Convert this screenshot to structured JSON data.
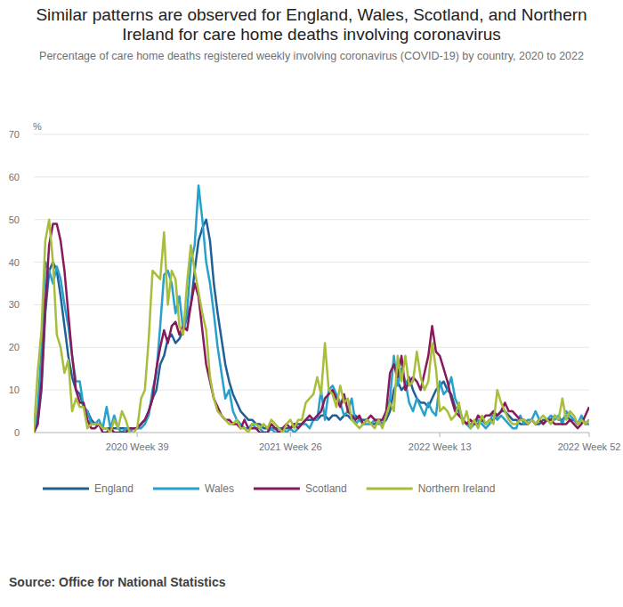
{
  "chart_data": {
    "type": "line",
    "title": "Similar patterns are observed for England, Wales, Scotland, and Northern Ireland for care home deaths involving coronavirus",
    "subtitle": "Percentage of care home deaths registered weekly involving coronavirus (COVID-19) by country, 2020 to 2022",
    "y_label": "%",
    "source": "Source: Office for National Statistics",
    "categories": [
      null,
      null,
      null,
      null,
      null,
      null,
      null,
      null,
      null,
      null,
      null,
      null,
      null,
      null,
      null,
      null,
      null,
      null,
      null,
      null,
      null,
      null,
      null,
      null,
      null,
      null,
      null,
      "2020 Week 39",
      null,
      null,
      null,
      null,
      null,
      null,
      null,
      null,
      null,
      null,
      null,
      null,
      null,
      null,
      null,
      null,
      null,
      null,
      null,
      null,
      null,
      null,
      null,
      null,
      null,
      null,
      null,
      null,
      null,
      null,
      null,
      null,
      null,
      null,
      null,
      null,
      null,
      null,
      null,
      "2021 Week 26",
      null,
      null,
      null,
      null,
      null,
      null,
      null,
      null,
      null,
      null,
      null,
      null,
      null,
      null,
      null,
      null,
      null,
      null,
      null,
      null,
      null,
      null,
      null,
      null,
      null,
      null,
      null,
      null,
      null,
      null,
      null,
      null,
      null,
      null,
      null,
      null,
      null,
      null,
      "2022 Week 13",
      null,
      null,
      null,
      null,
      null,
      null,
      null,
      null,
      null,
      null,
      null,
      null,
      null,
      null,
      null,
      null,
      null,
      null,
      null,
      null,
      null,
      null,
      null,
      null,
      null,
      null,
      null,
      null,
      null,
      null,
      null,
      null,
      null,
      null,
      null,
      null,
      null,
      null,
      "2022 Week 52"
    ],
    "series": [
      {
        "name": "England",
        "color": "#206095",
        "values": [
          0,
          2,
          10,
          28,
          38,
          40,
          38,
          32,
          25,
          18,
          13,
          10,
          9,
          6,
          5,
          3,
          2,
          2,
          1,
          1,
          1,
          1,
          1,
          1,
          1,
          1,
          1,
          1,
          2,
          3,
          5,
          8,
          10,
          16,
          18,
          22,
          23,
          21,
          22,
          24,
          27,
          30,
          38,
          45,
          48,
          50,
          45,
          35,
          28,
          22,
          16,
          12,
          9,
          7,
          5,
          4,
          3,
          3,
          2,
          2,
          1,
          1,
          1,
          1,
          1,
          1,
          1,
          1,
          2,
          2,
          2,
          3,
          3,
          3,
          3,
          4,
          4,
          3,
          4,
          4,
          3,
          4,
          4,
          3,
          4,
          3,
          3,
          3,
          2,
          2,
          3,
          2,
          3,
          5,
          10,
          12,
          10,
          11,
          13,
          10,
          8,
          7,
          7,
          6,
          8,
          10,
          11,
          12,
          10,
          9,
          6,
          5,
          3,
          2,
          2,
          2,
          2,
          3,
          2,
          3,
          3,
          4,
          5,
          5,
          4,
          3,
          3,
          2,
          2,
          2,
          3,
          2,
          2,
          3,
          3,
          3,
          4,
          3,
          3,
          4,
          3,
          3,
          2,
          3,
          2,
          3
        ]
      },
      {
        "name": "Wales",
        "color": "#27a0cc",
        "values": [
          0,
          5,
          20,
          40,
          38,
          35,
          39,
          36,
          30,
          25,
          18,
          12,
          12,
          6,
          5,
          2,
          2,
          3,
          1,
          6,
          1,
          4,
          1,
          0,
          1,
          0,
          1,
          1,
          1,
          2,
          4,
          10,
          14,
          25,
          37,
          38,
          35,
          28,
          32,
          24,
          28,
          40,
          44,
          58,
          50,
          40,
          35,
          28,
          20,
          14,
          8,
          10,
          5,
          3,
          2,
          1,
          1,
          2,
          1,
          1,
          0,
          0,
          1,
          0,
          0,
          1,
          0,
          1,
          0,
          1,
          2,
          2,
          1,
          3,
          3,
          10,
          3,
          10,
          11,
          9,
          7,
          4,
          5,
          8,
          2,
          3,
          2,
          2,
          2,
          3,
          2,
          2,
          4,
          8,
          18,
          11,
          15,
          12,
          7,
          5,
          8,
          6,
          4,
          7,
          5,
          4,
          12,
          9,
          10,
          13,
          8,
          6,
          3,
          2,
          1,
          2,
          3,
          2,
          1,
          2,
          5,
          3,
          4,
          3,
          2,
          1,
          1,
          4,
          2,
          3,
          3,
          5,
          3,
          2,
          3,
          4,
          3,
          4,
          2,
          5,
          4,
          3,
          2,
          4,
          2,
          2
        ]
      },
      {
        "name": "Scotland",
        "color": "#871a5b",
        "values": [
          0,
          2,
          12,
          30,
          44,
          49,
          49,
          45,
          38,
          28,
          18,
          10,
          7,
          7,
          3,
          1,
          1,
          2,
          0,
          0,
          1,
          0,
          0,
          0,
          0,
          1,
          1,
          1,
          2,
          3,
          5,
          8,
          15,
          20,
          24,
          21,
          25,
          26,
          23,
          25,
          24,
          30,
          35,
          32,
          24,
          16,
          12,
          8,
          6,
          4,
          3,
          3,
          2,
          2,
          1,
          3,
          1,
          1,
          1,
          0,
          0,
          0,
          2,
          1,
          0,
          1,
          2,
          1,
          2,
          1,
          2,
          3,
          4,
          3,
          4,
          5,
          8,
          9,
          10,
          8,
          6,
          9,
          5,
          4,
          3,
          4,
          2,
          3,
          4,
          3,
          3,
          3,
          5,
          14,
          16,
          13,
          18,
          10,
          12,
          13,
          12,
          10,
          14,
          18,
          25,
          19,
          18,
          15,
          12,
          8,
          5,
          4,
          3,
          2,
          3,
          2,
          4,
          3,
          4,
          4,
          5,
          4,
          5,
          7,
          5,
          5,
          4,
          3,
          3,
          2,
          3,
          2,
          3,
          2,
          3,
          3,
          2,
          2,
          2,
          2,
          3,
          2,
          1,
          2,
          4,
          6
        ]
      },
      {
        "name": "Northern Ireland",
        "color": "#a8bd3a",
        "values": [
          0,
          14,
          24,
          45,
          50,
          40,
          23,
          20,
          14,
          17,
          5,
          8,
          6,
          6,
          1,
          2,
          2,
          2,
          1,
          1,
          0,
          3,
          1,
          5,
          3,
          0,
          0,
          1,
          8,
          10,
          22,
          38,
          37,
          36,
          47,
          30,
          38,
          36,
          25,
          23,
          35,
          44,
          38,
          33,
          28,
          24,
          13,
          8,
          5,
          4,
          3,
          2,
          2,
          3,
          1,
          1,
          0,
          2,
          2,
          1,
          2,
          1,
          3,
          2,
          1,
          0,
          2,
          3,
          1,
          3,
          3,
          7,
          8,
          9,
          13,
          9,
          21,
          10,
          9,
          6,
          11,
          7,
          8,
          3,
          2,
          1,
          2,
          3,
          2,
          1,
          3,
          1,
          4,
          7,
          5,
          18,
          12,
          18,
          11,
          12,
          19,
          13,
          10,
          12,
          21,
          15,
          5,
          6,
          5,
          3,
          4,
          7,
          2,
          5,
          1,
          3,
          1,
          4,
          2,
          3,
          2,
          10,
          7,
          5,
          3,
          2,
          2,
          3,
          3,
          2,
          3,
          2,
          3,
          4,
          3,
          2,
          4,
          3,
          8,
          3,
          5,
          4,
          2,
          3,
          2,
          3
        ]
      }
    ],
    "ylim": [
      0,
      70
    ],
    "yticks": [
      0,
      10,
      20,
      30,
      40,
      50,
      60,
      70
    ],
    "grid": true,
    "legend": "bottom"
  }
}
